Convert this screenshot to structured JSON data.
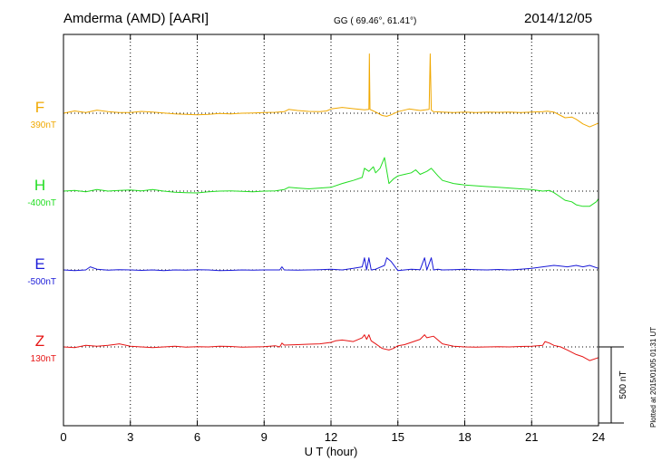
{
  "header": {
    "station": "Amderma (AMD)  [AARI]",
    "coords": "GG ( 69.46°,  61.41°)",
    "date": "2014/12/05"
  },
  "footer": {
    "plotted_text": "Plotted at 2015/01/05 01:31  UT"
  },
  "chart_data": {
    "type": "line",
    "title": "Amderma (AMD) [AARI] 2014/12/05",
    "xlabel": "U T (hour)",
    "xlim": [
      0,
      24
    ],
    "xticks": [
      0,
      3,
      6,
      9,
      12,
      15,
      18,
      21,
      24
    ],
    "xtick_labels": [
      "0",
      "3",
      "6",
      "9",
      "12",
      "15",
      "18",
      "21",
      "24"
    ],
    "scale_label": "500 nT",
    "scale_nT": 500,
    "grid": "dotted vertical every 3 h; dotted horizontal baseline per trace",
    "series": [
      {
        "name": "F",
        "baseline_label": "390nT",
        "baseline_nT": 390,
        "color": "#f0a800",
        "x": [
          0,
          0.5,
          1,
          1.5,
          2,
          2.5,
          3,
          3.5,
          4,
          4.5,
          5,
          5.5,
          6,
          6.5,
          7,
          7.5,
          8,
          8.5,
          9,
          9.5,
          9.9,
          10.1,
          10.5,
          11,
          11.5,
          11.8,
          12,
          12.5,
          13,
          13.5,
          13.7,
          13.72,
          13.75,
          13.9,
          14,
          14.3,
          14.5,
          14.7,
          15,
          15.5,
          16,
          16.4,
          16.45,
          16.5,
          16.6,
          17,
          17.5,
          18,
          18.5,
          19,
          19.5,
          20,
          20.5,
          21,
          21.5,
          21.7,
          22,
          22.3,
          22.5,
          22.8,
          23,
          23.3,
          23.6,
          24
        ],
        "y": [
          390,
          405,
          395,
          410,
          400,
          395,
          395,
          402,
          398,
          392,
          385,
          382,
          380,
          383,
          388,
          386,
          390,
          392,
          394,
          396,
          400,
          415,
          408,
          402,
          400,
          405,
          418,
          428,
          420,
          412,
          415,
          780,
          415,
          405,
          398,
          375,
          370,
          380,
          400,
          418,
          408,
          415,
          780,
          410,
          400,
          398,
          395,
          397,
          395,
          398,
          396,
          398,
          395,
          398,
          400,
          403,
          398,
          375,
          360,
          365,
          350,
          320,
          300,
          325
        ]
      },
      {
        "name": "H",
        "baseline_label": "-400nT",
        "baseline_nT": -400,
        "color": "#22dd22",
        "x": [
          0,
          0.5,
          1,
          1.5,
          2,
          2.5,
          3,
          3.5,
          4,
          4.5,
          5,
          5.5,
          6,
          6.5,
          7,
          7.5,
          8,
          8.5,
          9,
          9.5,
          9.9,
          10.1,
          10.5,
          11,
          11.5,
          12,
          12.5,
          13,
          13.4,
          13.5,
          13.7,
          13.9,
          14,
          14.2,
          14.4,
          14.6,
          14.8,
          15,
          15.3,
          15.6,
          15.8,
          16,
          16.3,
          16.5,
          16.8,
          17,
          17.5,
          18,
          18.5,
          19,
          19.5,
          20,
          20.5,
          21,
          21.5,
          21.8,
          22,
          22.2,
          22.5,
          22.8,
          23,
          23.3,
          23.6,
          23.9,
          24
        ],
        "y": [
          -400,
          -395,
          -405,
          -390,
          -400,
          -395,
          -393,
          -398,
          -390,
          -400,
          -408,
          -410,
          -412,
          -405,
          -400,
          -398,
          -402,
          -405,
          -400,
          -398,
          -390,
          -375,
          -380,
          -385,
          -380,
          -375,
          -350,
          -330,
          -310,
          -250,
          -270,
          -240,
          -280,
          -250,
          -180,
          -350,
          -320,
          -300,
          -290,
          -280,
          -260,
          -290,
          -270,
          -250,
          -300,
          -330,
          -350,
          -360,
          -365,
          -370,
          -375,
          -380,
          -385,
          -390,
          -400,
          -395,
          -410,
          -430,
          -460,
          -470,
          -490,
          -500,
          -500,
          -470,
          -450
        ]
      },
      {
        "name": "E",
        "baseline_label": "-500nT",
        "baseline_nT": -500,
        "color": "#1a1ad8",
        "x": [
          0,
          0.5,
          1,
          1.2,
          1.5,
          2,
          2.5,
          3,
          3.5,
          4,
          4.5,
          5,
          5.5,
          6,
          6.5,
          7,
          7.5,
          8,
          8.5,
          9,
          9.7,
          9.8,
          9.9,
          10.5,
          11,
          11.5,
          12,
          12.5,
          13,
          13.4,
          13.5,
          13.6,
          13.7,
          13.8,
          14,
          14.4,
          14.5,
          14.7,
          15,
          15.3,
          15.6,
          16,
          16.2,
          16.3,
          16.5,
          16.6,
          16.8,
          17,
          17.5,
          18,
          18.5,
          19,
          19.5,
          20,
          20.5,
          21,
          21.5,
          22,
          22.3,
          22.6,
          23,
          23.3,
          23.6,
          24
        ],
        "y": [
          -500,
          -505,
          -500,
          -480,
          -495,
          -502,
          -498,
          -500,
          -503,
          -500,
          -505,
          -500,
          -502,
          -498,
          -500,
          -505,
          -503,
          -500,
          -502,
          -500,
          -500,
          -480,
          -500,
          -502,
          -500,
          -498,
          -495,
          -500,
          -490,
          -480,
          -420,
          -500,
          -420,
          -500,
          -495,
          -470,
          -420,
          -445,
          -505,
          -500,
          -495,
          -498,
          -420,
          -500,
          -420,
          -500,
          -495,
          -500,
          -498,
          -495,
          -498,
          -500,
          -497,
          -500,
          -495,
          -490,
          -480,
          -470,
          -475,
          -480,
          -470,
          -480,
          -470,
          -490
        ]
      },
      {
        "name": "Z",
        "baseline_label": "130nT",
        "baseline_nT": 130,
        "color": "#e61414",
        "x": [
          0,
          0.5,
          1,
          1.5,
          2,
          2.5,
          3,
          3.5,
          4,
          4.5,
          5,
          5.5,
          6,
          6.5,
          7,
          7.5,
          8,
          8.5,
          9,
          9.5,
          9.7,
          9.8,
          9.9,
          10.5,
          11,
          11.5,
          12,
          12.2,
          12.5,
          13,
          13.4,
          13.5,
          13.6,
          13.7,
          13.8,
          14,
          14.3,
          14.6,
          14.8,
          15,
          15.3,
          15.6,
          16,
          16.2,
          16.3,
          16.6,
          17,
          17.5,
          18,
          18.5,
          19,
          19.5,
          20,
          20.5,
          21,
          21.5,
          21.6,
          21.8,
          22,
          22.3,
          22.6,
          23,
          23.3,
          23.6,
          24
        ],
        "y": [
          130,
          125,
          140,
          135,
          140,
          150,
          135,
          130,
          125,
          130,
          135,
          128,
          132,
          130,
          135,
          133,
          128,
          130,
          132,
          138,
          130,
          155,
          142,
          145,
          148,
          150,
          160,
          170,
          175,
          165,
          190,
          210,
          180,
          210,
          170,
          150,
          120,
          110,
          120,
          138,
          145,
          160,
          180,
          210,
          190,
          200,
          150,
          135,
          130,
          128,
          130,
          132,
          130,
          133,
          135,
          140,
          165,
          155,
          140,
          130,
          110,
          80,
          65,
          40,
          60
        ]
      }
    ]
  }
}
